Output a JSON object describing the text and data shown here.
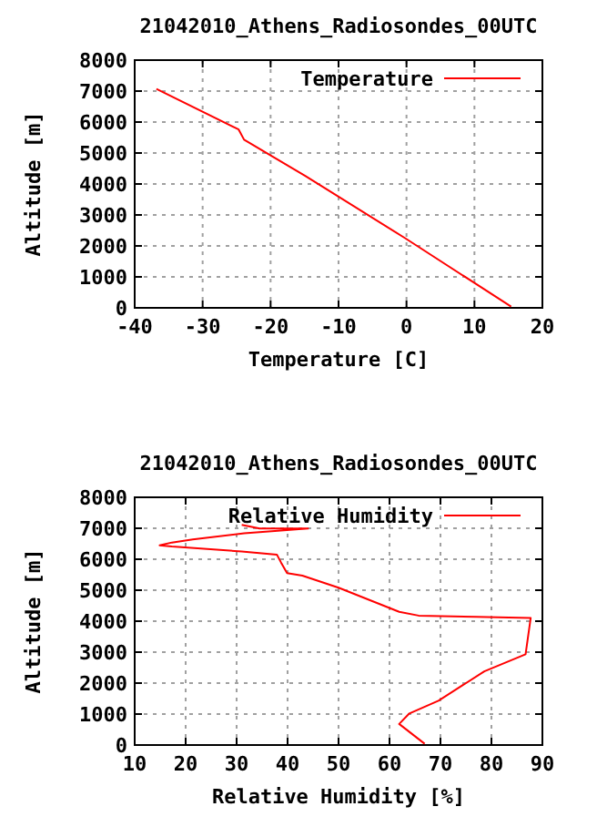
{
  "chart_data": [
    {
      "type": "line",
      "title": "21042010_Athens_Radiosondes_00UTC",
      "xlabel": "Temperature [C]",
      "ylabel": "Altitude [m]",
      "xlim": [
        -40,
        20
      ],
      "xticks": [
        -40,
        -30,
        -20,
        -10,
        0,
        10,
        20
      ],
      "ylim": [
        0,
        8000
      ],
      "yticks": [
        0,
        1000,
        2000,
        3000,
        4000,
        5000,
        6000,
        7000,
        8000
      ],
      "grid": true,
      "legend": "top right",
      "marker": "none",
      "line_style": "solid",
      "series": [
        {
          "name": "Temperature",
          "color": "#ff0000",
          "x": [
            -36.8,
            -24.7,
            -23.9,
            -14.9,
            -0.2,
            15.4
          ],
          "values": [
            7070,
            5760,
            5430,
            4260,
            2250,
            40
          ]
        }
      ]
    },
    {
      "type": "line",
      "title": "21042010_Athens_Radiosondes_00UTC",
      "xlabel": "Relative Humidity [%]",
      "ylabel": "Altitude [m]",
      "xlim": [
        10,
        90
      ],
      "xticks": [
        10,
        20,
        30,
        40,
        50,
        60,
        70,
        80,
        90
      ],
      "ylim": [
        0,
        8000
      ],
      "yticks": [
        0,
        1000,
        2000,
        3000,
        4000,
        5000,
        6000,
        7000,
        8000
      ],
      "grid": true,
      "legend": "top right",
      "marker": "none",
      "line_style": "solid",
      "series": [
        {
          "name": "Relative Humidity",
          "color": "#ff0000",
          "x": [
            66.9,
            61.9,
            63.9,
            69.6,
            78.6,
            86.7,
            87.7,
            77.0,
            65.7,
            61.9,
            50.0,
            42.9,
            39.9,
            38.7,
            37.9,
            31.0,
            17.3,
            14.9,
            17.3,
            21.4,
            31.5,
            38.7,
            44.0,
            34.5,
            31.0
          ],
          "values": [
            40,
            680,
            1020,
            1430,
            2380,
            2930,
            4100,
            4140,
            4180,
            4300,
            5080,
            5470,
            5550,
            5900,
            6150,
            6250,
            6410,
            6450,
            6540,
            6640,
            6840,
            6930,
            6990,
            6990,
            7110
          ]
        }
      ]
    }
  ]
}
